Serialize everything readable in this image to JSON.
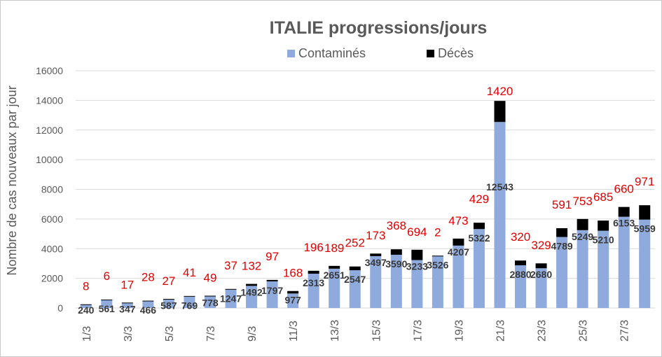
{
  "chart_data": {
    "type": "bar",
    "stacked": true,
    "title": "ITALIE progressions/jours",
    "xlabel": "",
    "ylabel": "Nombre de cas nouveaux par jour",
    "ylim": [
      0,
      16000
    ],
    "yticks": [
      0,
      2000,
      4000,
      6000,
      8000,
      10000,
      12000,
      14000,
      16000
    ],
    "grid": true,
    "legend_position": "top",
    "categories": [
      "1/3",
      "2/3",
      "3/3",
      "4/3",
      "5/3",
      "6/3",
      "7/3",
      "8/3",
      "9/3",
      "10/3",
      "11/3",
      "12/3",
      "13/3",
      "14/3",
      "15/3",
      "16/3",
      "17/3",
      "18/3",
      "19/3",
      "20/3",
      "21/3",
      "22/3",
      "23/3",
      "24/3",
      "25/3",
      "26/3",
      "27/3",
      "28/3"
    ],
    "xtick_labels": [
      "1/3",
      "",
      "3/3",
      "",
      "5/3",
      "",
      "7/3",
      "",
      "9/3",
      "",
      "11/3",
      "",
      "13/3",
      "",
      "15/3",
      "",
      "17/3",
      "",
      "19/3",
      "",
      "21/3",
      "",
      "23/3",
      "",
      "25/3",
      "",
      "27/3",
      ""
    ],
    "series": [
      {
        "name": "Contaminés",
        "color": "#8faadc",
        "values": [
          240,
          561,
          347,
          466,
          587,
          769,
          778,
          1247,
          1492,
          1797,
          977,
          2313,
          2651,
          2547,
          3497,
          3590,
          3233,
          3526,
          4207,
          5322,
          12543,
          2880,
          2680,
          4789,
          5249,
          5210,
          6153,
          5959
        ]
      },
      {
        "name": "Décès",
        "color": "#000000",
        "values": [
          8,
          6,
          17,
          28,
          27,
          41,
          49,
          37,
          132,
          97,
          168,
          196,
          189,
          252,
          173,
          368,
          694,
          2,
          473,
          429,
          1420,
          320,
          329,
          591,
          753,
          685,
          660,
          971
        ]
      }
    ],
    "colors": {
      "cases": "#8faadc",
      "deaths": "#000000",
      "death_label": "#e00000",
      "case_label": "#3a3a3a",
      "title": "#595959",
      "axis_text": "#595959",
      "grid": "#d9d9d9"
    }
  }
}
